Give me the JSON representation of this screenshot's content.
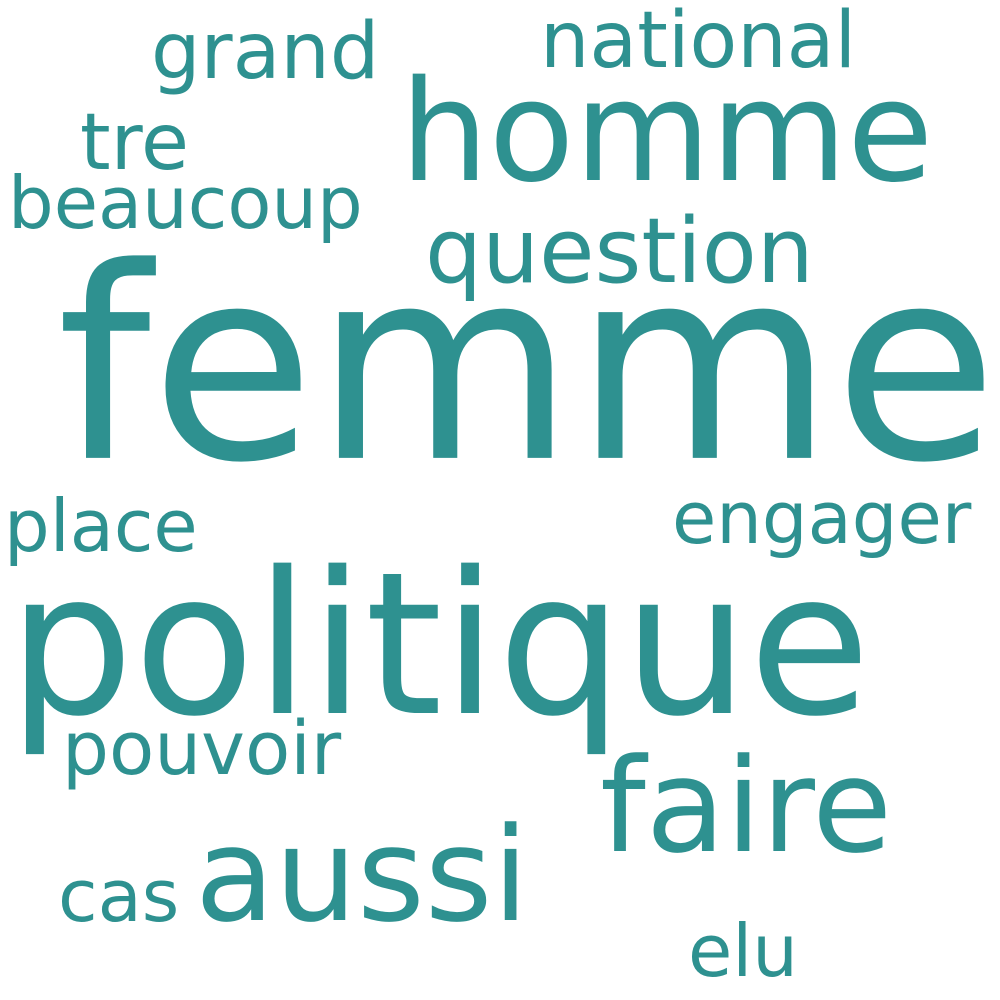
{
  "word_cloud": {
    "color": "#2e9190",
    "background": "#ffffff",
    "words": {
      "femme": "femme",
      "politique": "politique",
      "homme": "homme",
      "aussi": "aussi",
      "faire": "faire",
      "question": "question",
      "grand": "grand",
      "national": "national",
      "tre": "tre",
      "beaucoup": "beaucoup",
      "place": "place",
      "engager": "engager",
      "pouvoir": "pouvoir",
      "cas": "cas",
      "elu": "elu"
    }
  }
}
